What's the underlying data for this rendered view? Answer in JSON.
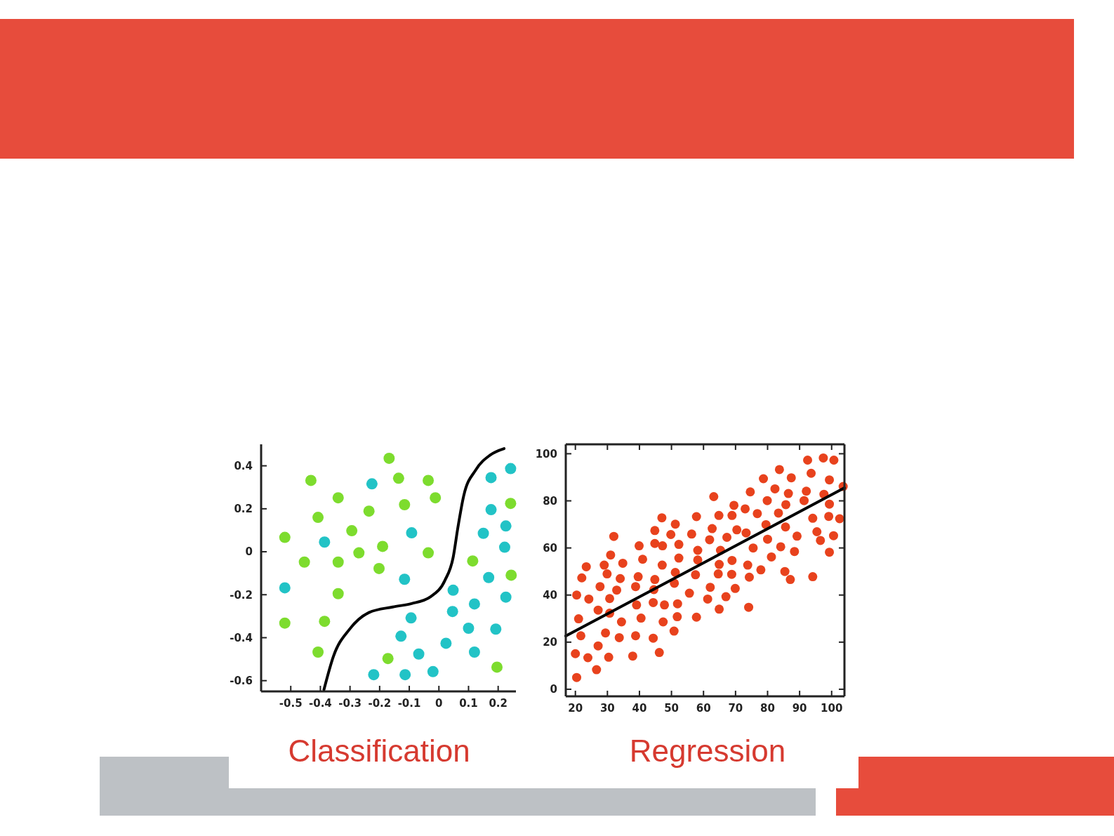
{
  "chart_data": [
    {
      "type": "scatter",
      "title": "Classification",
      "xlim": [
        -0.6,
        0.26
      ],
      "ylim": [
        -0.65,
        0.5
      ],
      "xticks": [
        -0.5,
        -0.4,
        -0.3,
        -0.2,
        -0.1,
        0,
        0.1,
        0.2
      ],
      "yticks": [
        -0.6,
        -0.4,
        -0.2,
        0,
        0.2,
        0.4
      ],
      "series": [
        {
          "marker": "circle",
          "color": "#7ddc2e",
          "x": [
            -0.168,
            -0.432,
            -0.136,
            -0.036,
            -0.34,
            -0.012,
            -0.116,
            -0.236,
            -0.408,
            -0.294,
            -0.52,
            -0.19,
            -0.27,
            -0.036,
            -0.454,
            -0.34,
            -0.202,
            -0.34,
            -0.52,
            -0.386,
            -0.408,
            -0.172,
            0.114,
            0.242,
            0.244,
            0.196
          ],
          "values": [
            0.435,
            0.332,
            0.342,
            0.332,
            0.251,
            0.251,
            0.219,
            0.189,
            0.16,
            0.098,
            0.067,
            0.025,
            -0.005,
            -0.005,
            -0.048,
            -0.048,
            -0.078,
            -0.195,
            -0.332,
            -0.324,
            -0.467,
            -0.497,
            -0.043,
            0.225,
            -0.109,
            -0.537
          ]
        },
        {
          "marker": "circle",
          "color": "#22c3c6",
          "x": [
            -0.226,
            -0.092,
            -0.386,
            -0.52,
            -0.116,
            0.048,
            0.046,
            -0.094,
            0.12,
            0.1,
            -0.128,
            0.024,
            -0.068,
            0.12,
            -0.22,
            -0.114,
            -0.02,
            0.176,
            0.242,
            0.176,
            0.226,
            0.15,
            0.222,
            0.168,
            0.226,
            0.192
          ],
          "values": [
            0.316,
            0.088,
            0.045,
            -0.168,
            -0.128,
            -0.179,
            -0.278,
            -0.308,
            -0.243,
            -0.356,
            -0.393,
            -0.426,
            -0.476,
            -0.467,
            -0.572,
            -0.572,
            -0.558,
            0.345,
            0.387,
            0.196,
            0.12,
            0.086,
            0.021,
            -0.12,
            -0.211,
            -0.36
          ]
        },
        {
          "type": "line",
          "color": "#000000",
          "x": [
            -0.388,
            -0.356,
            -0.3,
            -0.236,
            -0.156,
            -0.092,
            -0.028,
            0.02,
            0.048,
            0.064,
            0.084,
            0.124,
            0.172,
            0.22
          ],
          "values": [
            -0.642,
            -0.487,
            -0.358,
            -0.283,
            -0.257,
            -0.241,
            -0.209,
            -0.134,
            -0.027,
            0.112,
            0.262,
            0.38,
            0.449,
            0.48
          ]
        }
      ]
    },
    {
      "type": "scatter",
      "title": "Regression",
      "xlim": [
        17,
        104
      ],
      "ylim": [
        -3,
        104
      ],
      "xticks": [
        20,
        30,
        40,
        50,
        60,
        70,
        80,
        90,
        100
      ],
      "yticks": [
        0,
        20,
        40,
        60,
        80,
        100
      ],
      "series": [
        {
          "marker": "circle",
          "color": "#e8421d",
          "x": [
            20.4,
            21,
            20,
            20.4,
            21.7,
            22,
            23.4,
            24.2,
            23.9,
            26.6,
            27.1,
            27.1,
            27.7,
            29,
            29.4,
            29.9,
            30.4,
            30.7,
            30.7,
            32,
            31,
            32.9,
            33.7,
            34,
            34.4,
            34.8,
            37.9,
            38.8,
            38.8,
            39.1,
            39.6,
            39.9,
            40.5,
            41,
            44.3,
            44.3,
            44.5,
            44.8,
            44.8,
            44.8,
            46.2,
            47,
            47.1,
            47.2,
            47.4,
            47.8,
            49.8,
            50.8,
            50.9,
            51.2,
            51.2,
            51.8,
            51.9,
            52.3,
            52.3,
            55.6,
            56.3,
            57.5,
            57.8,
            58.2,
            58.2,
            57.8,
            61.3,
            61.9,
            62.1,
            62.7,
            63.2,
            64.8,
            64.9,
            64.9,
            65.3,
            64.6,
            67,
            67.3,
            68.9,
            68.9,
            68.8,
            69.5,
            69.9,
            70.4,
            73,
            73.3,
            73.8,
            74.1,
            74.3,
            74.6,
            75.5,
            76.8,
            77.9,
            78.7,
            79.5,
            79.9,
            80,
            81.2,
            82.3,
            83.4,
            83.7,
            84.1,
            85.4,
            85.6,
            85.7,
            86.5,
            87.1,
            87.4,
            88.4,
            89.2,
            91.4,
            92.1,
            92.5,
            93.6,
            94.1,
            94.1,
            95.4,
            96.5,
            97.4,
            97.6,
            99.3,
            99.3,
            99.1,
            99.3,
            100.7,
            100.6,
            102.5,
            103.6
          ],
          "values": [
            40,
            29.9,
            15.1,
            5,
            22.7,
            47.3,
            52,
            38.3,
            13.4,
            8.3,
            18.4,
            33.6,
            43.6,
            52.7,
            23.9,
            49,
            13.6,
            38.5,
            32.3,
            64.9,
            57,
            42.1,
            21.9,
            47,
            28.6,
            53.5,
            14.1,
            22.7,
            43.6,
            35.8,
            47.8,
            60.9,
            30.2,
            55.2,
            36.8,
            21.7,
            42.3,
            67.4,
            46.6,
            61.9,
            15.6,
            72.8,
            52.7,
            60.9,
            28.6,
            35.8,
            65.7,
            24.7,
            45,
            49.6,
            70.1,
            30.8,
            36.3,
            55.7,
            61.5,
            40.8,
            65.9,
            48.6,
            30.6,
            54.9,
            59,
            73.3,
            38.3,
            63.5,
            43.3,
            68.2,
            81.8,
            73.8,
            34,
            53,
            59,
            49,
            39.3,
            64.5,
            73.8,
            54.7,
            48.8,
            78.1,
            42.8,
            67.7,
            76.6,
            66.4,
            52.7,
            34.8,
            47.6,
            83.8,
            60,
            74.6,
            50.7,
            89.4,
            69.9,
            80.1,
            63.7,
            56.2,
            85.1,
            74.8,
            93.3,
            60.5,
            50,
            68.9,
            78.4,
            83.1,
            46.6,
            89.8,
            58.5,
            65,
            80.1,
            84.1,
            97.3,
            91.7,
            72.6,
            47.8,
            66.9,
            63.2,
            98.2,
            82.8,
            88.9,
            78.6,
            73.4,
            58.2,
            97.3,
            65.2,
            72.4,
            86.1
          ]
        },
        {
          "type": "line",
          "color": "#000000",
          "x": [
            17,
            104
          ],
          "values": [
            22.6,
            85.5
          ]
        }
      ]
    }
  ]
}
